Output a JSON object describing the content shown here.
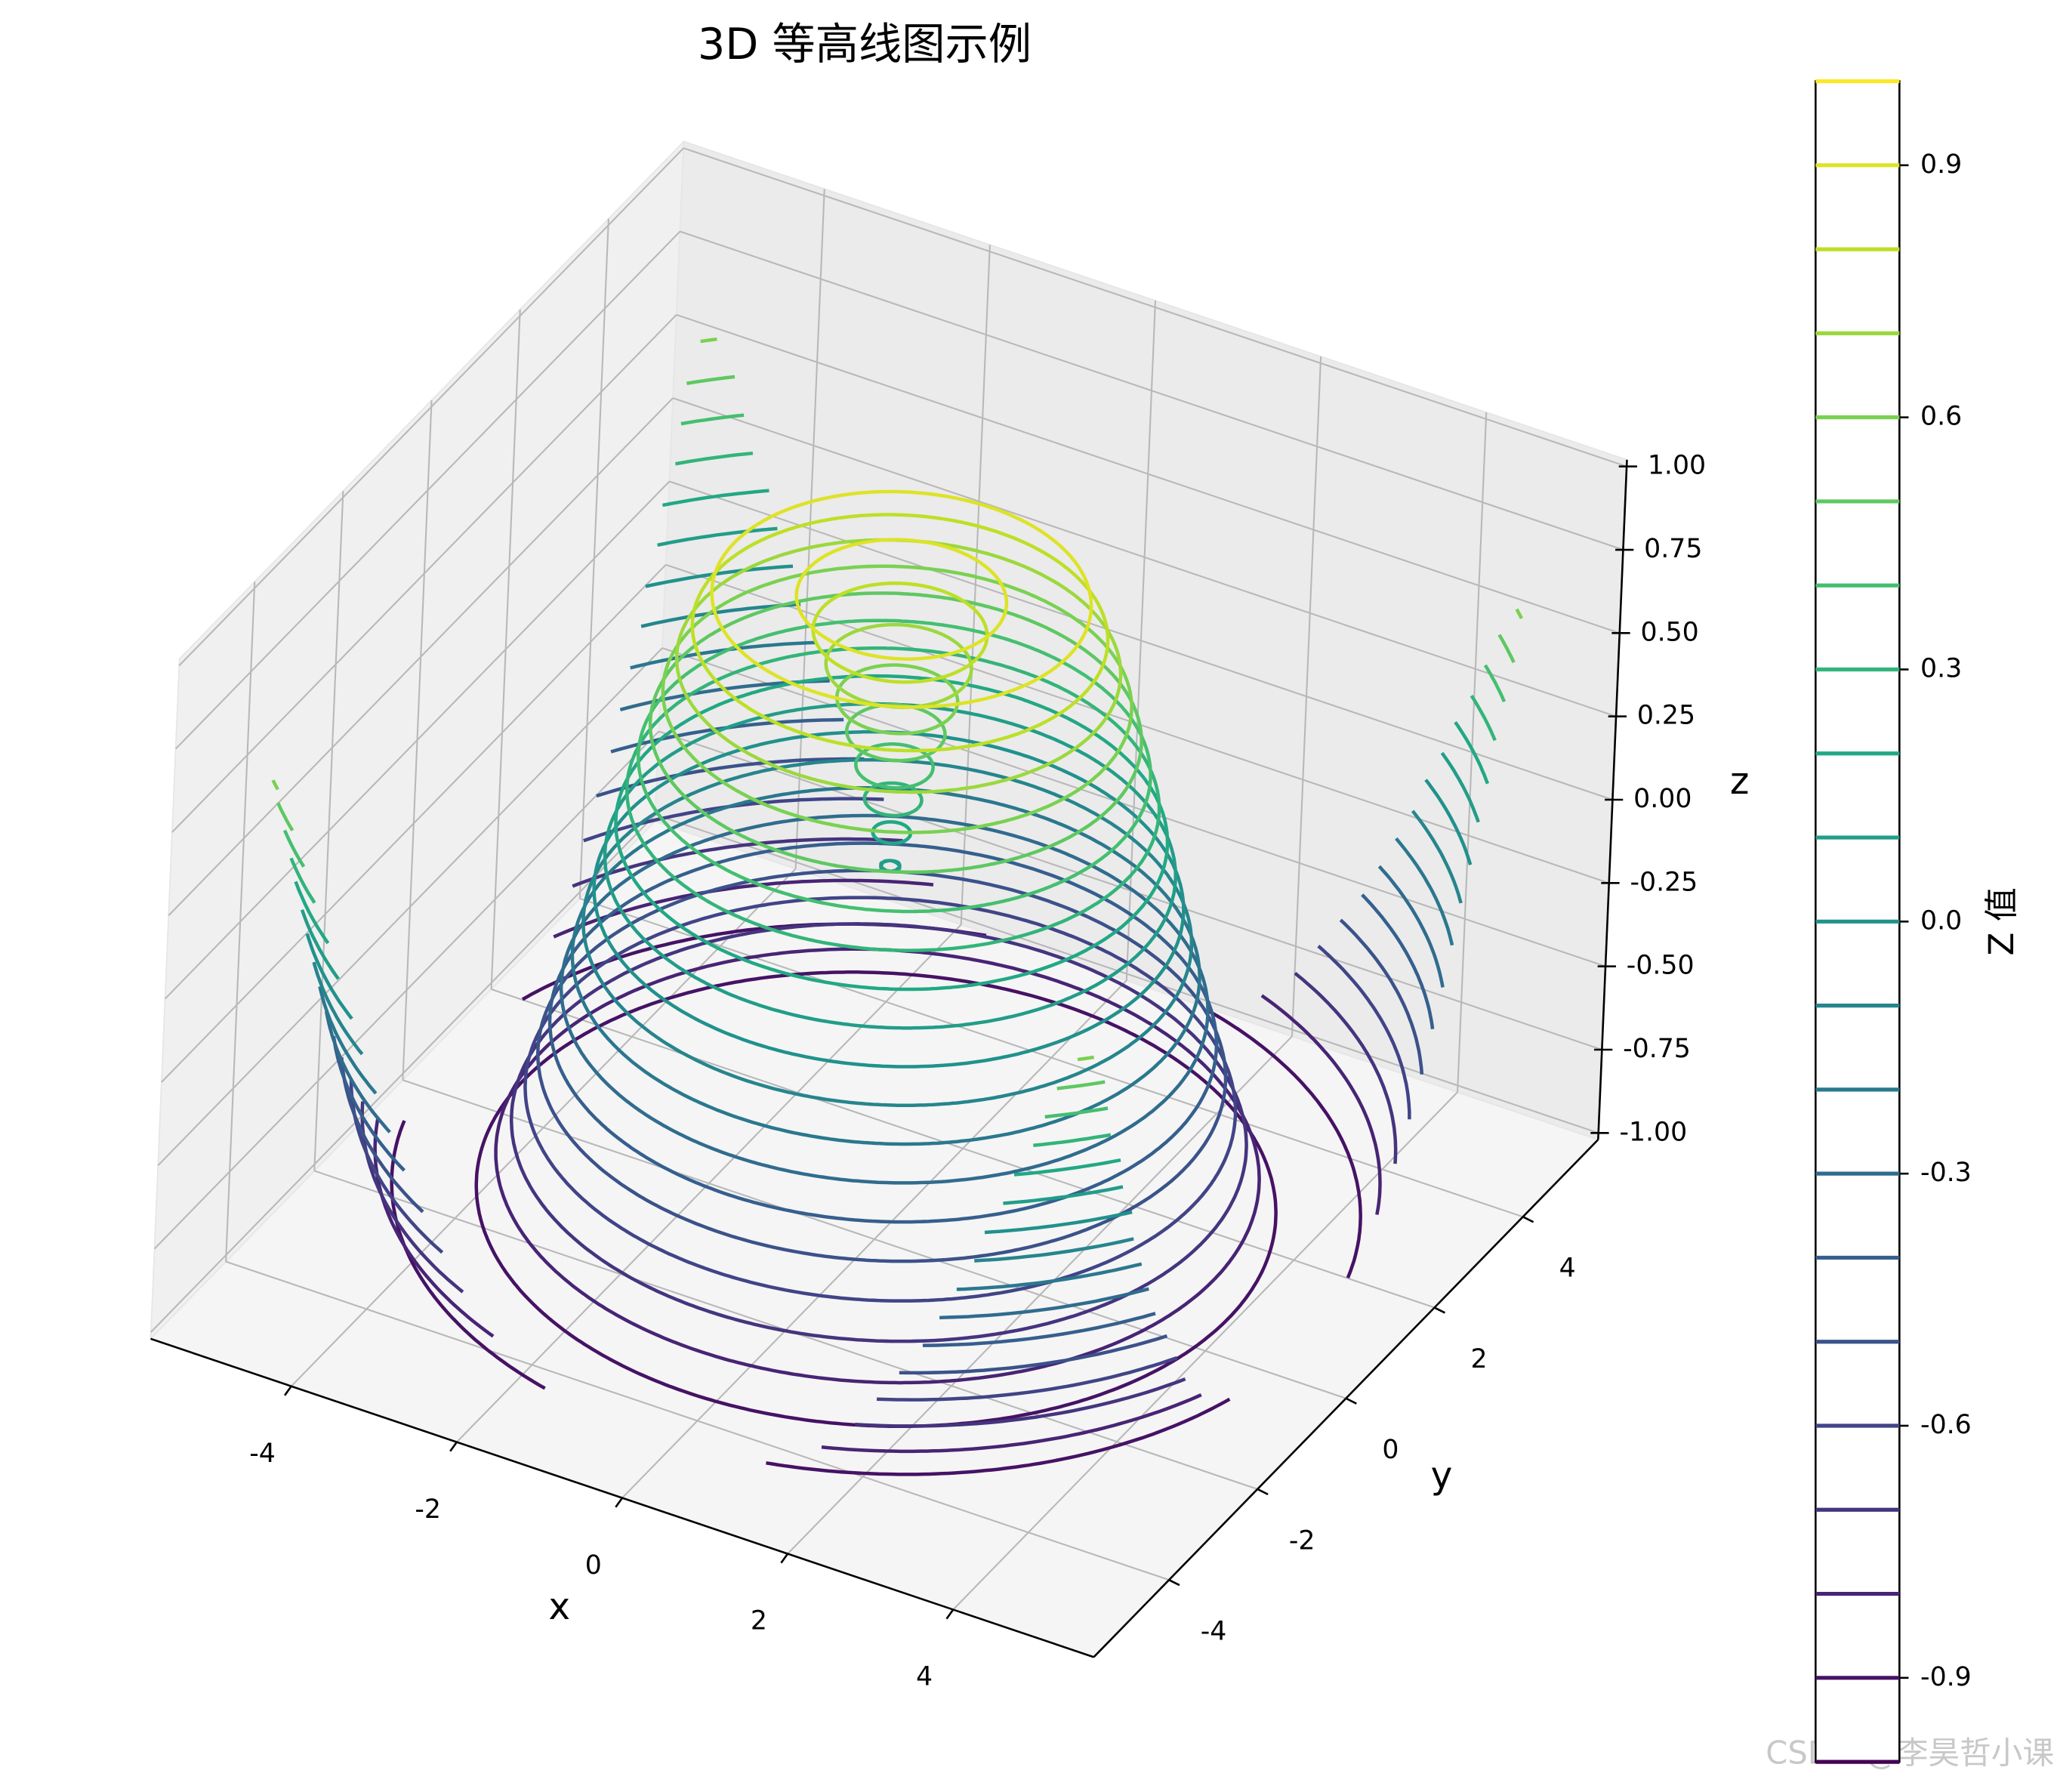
{
  "chart_data": {
    "type": "contour3d",
    "title": "3D 等高线图示例",
    "xlabel": "x",
    "ylabel": "y",
    "zlabel": "z",
    "xlim": [
      -5.7,
      5.7
    ],
    "ylim": [
      -5.7,
      5.7
    ],
    "zlim": [
      -1.02,
      1.02
    ],
    "xticks": [
      -4,
      -2,
      0,
      2,
      4
    ],
    "yticks": [
      -4,
      -2,
      0,
      2,
      4
    ],
    "zticks": [
      {
        "value": -1,
        "label": "-1.00"
      },
      {
        "value": -0.75,
        "label": "-0.75"
      },
      {
        "value": -0.5,
        "label": "-0.50"
      },
      {
        "value": -0.25,
        "label": "-0.25"
      },
      {
        "value": 0,
        "label": "0.00"
      },
      {
        "value": 0.25,
        "label": "0.25"
      },
      {
        "value": 0.5,
        "label": "0.50"
      },
      {
        "value": 0.75,
        "label": "0.75"
      },
      {
        "value": 1,
        "label": "1.00"
      }
    ],
    "surface": {
      "x": [
        -5,
        5
      ],
      "y": [
        -5,
        5
      ]
    },
    "levels": [
      -1.0,
      -0.9,
      -0.8,
      -0.7,
      -0.6,
      -0.5,
      -0.4,
      -0.3,
      -0.2,
      -0.1,
      0.0,
      0.1,
      0.2,
      0.3,
      0.4,
      0.5,
      0.6,
      0.7,
      0.8,
      0.9,
      1.0
    ],
    "colormap": "viridis",
    "grid": true,
    "colorbar": {
      "label": "Z 值",
      "lim": [
        -1,
        1
      ],
      "ticks": [
        -0.9,
        -0.6,
        -0.3,
        {
          "value": 0,
          "label": "0.0"
        },
        0.3,
        0.6,
        0.9
      ]
    },
    "watermark": "CSDN @李昊哲小课"
  }
}
